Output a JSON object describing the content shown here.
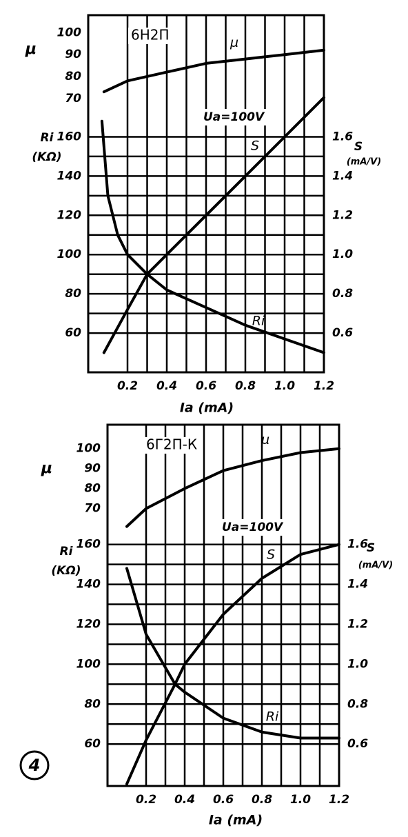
{
  "figure_label": "4",
  "chart_data": [
    {
      "type": "line",
      "title": "6Н2П",
      "annotation": "Uа=100V",
      "xlabel": "Iа (mA)",
      "ylabel": "Ri",
      "ylabel_unit": "(KΩ)",
      "y2label": "S",
      "y2label_unit": "(mA/V)",
      "y3label": "μ",
      "xlim": [
        0,
        1.2
      ],
      "xticks": [
        0.2,
        0.4,
        0.6,
        0.8,
        {
          "value": 1,
          "label": "1.0"
        },
        1.2
      ],
      "ylim": [
        40,
        222
      ],
      "yticks": [
        60,
        80,
        100,
        120,
        140,
        160
      ],
      "y2lim": [
        0.4,
        2.22
      ],
      "y2ticks": [
        0.6,
        0.8,
        {
          "value": 1,
          "label": "1.0"
        },
        1.2,
        1.4,
        1.6
      ],
      "y3lim": [
        -55,
        108
      ],
      "y3ticks": [
        70,
        80,
        90,
        100
      ],
      "grid": true,
      "series": [
        {
          "name": "μ",
          "color": "#000000",
          "axis": "y3",
          "x": [
            0.08,
            0.2,
            0.4,
            0.6,
            0.8,
            1.0,
            1.2
          ],
          "values": [
            73,
            78,
            82,
            86,
            88,
            90,
            92
          ]
        },
        {
          "name": "S",
          "color": "#000000",
          "axis": "y2",
          "x": [
            0.08,
            0.2,
            0.3,
            0.4,
            0.6,
            0.8,
            1.0,
            1.2
          ],
          "values": [
            0.5,
            0.72,
            0.9,
            1.0,
            1.2,
            1.4,
            1.6,
            1.8
          ]
        },
        {
          "name": "Ri",
          "color": "#000000",
          "axis": "y",
          "x": [
            0.07,
            0.1,
            0.15,
            0.2,
            0.3,
            0.4,
            0.6,
            0.8,
            1.0,
            1.2
          ],
          "values": [
            168,
            130,
            110,
            100,
            90,
            82,
            73,
            64,
            57,
            50
          ]
        }
      ]
    },
    {
      "type": "line",
      "title": "6Г2П-К",
      "annotation": "Uа=100V",
      "xlabel": "Iа (mA)",
      "ylabel": "Ri",
      "ylabel_unit": "(KΩ)",
      "y2label": "S",
      "y2label_unit": "(mA/V)",
      "y3label": "μ",
      "xlim": [
        0,
        1.2
      ],
      "xticks": [
        0.2,
        0.4,
        0.6,
        0.8,
        {
          "value": 1,
          "label": "1.0"
        },
        1.2
      ],
      "ylim": [
        39,
        220
      ],
      "yticks": [
        60,
        80,
        100,
        120,
        140,
        160
      ],
      "y2lim": [
        0.39,
        2.2
      ],
      "y2ticks": [
        0.6,
        0.8,
        {
          "value": 1,
          "label": "1.0"
        },
        1.2,
        1.4,
        1.6
      ],
      "y3lim": [
        -69,
        112
      ],
      "y3ticks": [
        70,
        80,
        90,
        100
      ],
      "grid": true,
      "series": [
        {
          "name": "μ",
          "color": "#000000",
          "axis": "y3",
          "x": [
            0.1,
            0.2,
            0.4,
            0.6,
            0.8,
            1.0,
            1.2
          ],
          "values": [
            61,
            70,
            80,
            89,
            94,
            98,
            100
          ]
        },
        {
          "name": "S",
          "color": "#000000",
          "axis": "y2",
          "x": [
            0.1,
            0.2,
            0.35,
            0.4,
            0.6,
            0.8,
            1.0,
            1.2
          ],
          "values": [
            0.4,
            0.62,
            0.9,
            1.0,
            1.25,
            1.43,
            1.55,
            1.6
          ]
        },
        {
          "name": "Ri",
          "color": "#000000",
          "axis": "y",
          "x": [
            0.1,
            0.2,
            0.35,
            0.4,
            0.6,
            0.8,
            1.0,
            1.2
          ],
          "values": [
            148,
            115,
            90,
            86,
            73,
            66,
            63,
            63
          ]
        }
      ]
    }
  ]
}
